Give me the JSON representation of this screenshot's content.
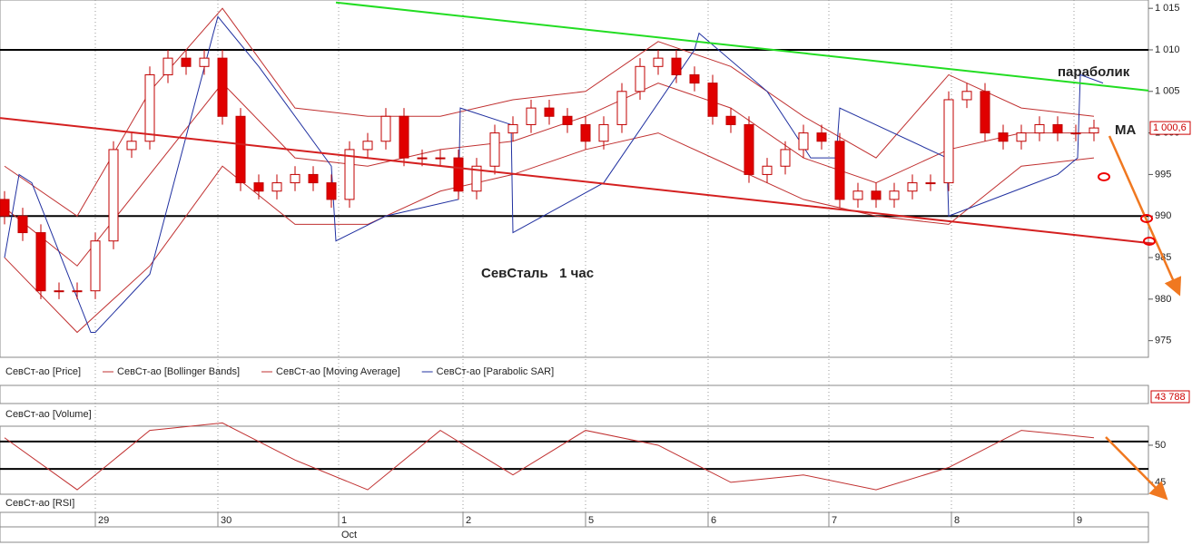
{
  "chart_data": {
    "type": "candlestick",
    "open": [
      992,
      990,
      988,
      981,
      981,
      981,
      987,
      998,
      999,
      1007,
      1009,
      1008,
      1009,
      1002,
      994,
      993,
      994,
      995,
      994,
      992,
      998,
      999,
      1002,
      997,
      997,
      997,
      993,
      996,
      1000,
      1001,
      1003,
      1002,
      1001,
      999,
      1001,
      1005,
      1008,
      1009,
      1007,
      1006,
      1002,
      1001,
      995,
      996,
      998,
      1000,
      999,
      992,
      993,
      992,
      993,
      994,
      994,
      1004,
      1005,
      1000,
      999,
      1000,
      1001,
      1000,
      1000
    ],
    "high": [
      993,
      991,
      989,
      982,
      982,
      988,
      999,
      1000,
      1008,
      1010,
      1010,
      1010,
      1010,
      1003,
      995,
      995,
      996,
      996,
      995,
      999,
      1000,
      1003,
      1003,
      998,
      998,
      998,
      997,
      1001,
      1002,
      1004,
      1004,
      1003,
      1002,
      1002,
      1006,
      1009,
      1010,
      1010,
      1008,
      1007,
      1003,
      1002,
      997,
      999,
      1001,
      1001,
      1000,
      994,
      994,
      994,
      995,
      995,
      1005,
      1006,
      1006,
      1001,
      1001,
      1002,
      1002,
      1001,
      1001.6
    ],
    "low": [
      989,
      987,
      980,
      980,
      980,
      980,
      986,
      997,
      998,
      1006,
      1007,
      1007,
      1001,
      993,
      992,
      992,
      993,
      993,
      991,
      991,
      997,
      998,
      996,
      996,
      996,
      992,
      992,
      995,
      999,
      1000,
      1001,
      1000,
      998,
      998,
      1000,
      1004,
      1007,
      1006,
      1005,
      1001,
      1000,
      994,
      994,
      995,
      997,
      998,
      991,
      991,
      991,
      991,
      992,
      993,
      993,
      1003,
      999,
      998,
      998,
      999,
      999,
      999,
      999
    ],
    "close": [
      990,
      988,
      981,
      981,
      981,
      987,
      998,
      999,
      1007,
      1009,
      1008,
      1009,
      1002,
      994,
      993,
      994,
      995,
      994,
      992,
      998,
      999,
      1002,
      997,
      997,
      997,
      993,
      996,
      1000,
      1001,
      1003,
      1002,
      1001,
      999,
      1001,
      1005,
      1008,
      1009,
      1007,
      1006,
      1002,
      1001,
      995,
      996,
      998,
      1000,
      999,
      992,
      993,
      992,
      993,
      994,
      994,
      1004,
      1005,
      1000,
      999,
      1000,
      1001,
      1000,
      1000,
      1000.6
    ],
    "candle_up_color": "#ffffff",
    "candle_down_color": "#e00000",
    "candle_border_color": "#c00000",
    "xlim": [
      -0.25,
      63
    ],
    "ylim": [
      973,
      1016
    ],
    "yticks": [
      {
        "value": 1015,
        "label": "1 015"
      },
      {
        "value": 1010,
        "label": "1 010"
      },
      {
        "value": 1005,
        "label": "1 005"
      },
      {
        "value": 1000,
        "label": "1 000"
      },
      995,
      990,
      985,
      980,
      975
    ],
    "xticks": [
      {
        "value": 5,
        "label": "29"
      },
      {
        "value": 11.75,
        "label": "30"
      },
      {
        "value": 18.4,
        "label": "1"
      },
      {
        "value": 25.25,
        "label": "2"
      },
      {
        "value": 32,
        "label": "5"
      },
      {
        "value": 38.75,
        "label": "6"
      },
      {
        "value": 45.4,
        "label": "7"
      },
      {
        "value": 52.15,
        "label": "8"
      },
      {
        "value": 58.9,
        "label": "9"
      }
    ],
    "month_label": "Oct",
    "last_price": {
      "value": 1000.6,
      "label": "1 000,6"
    },
    "series": [
      {
        "name": "СевСт-ао [Bollinger Bands]",
        "color": "#c03030",
        "x": [
          0,
          4,
          8,
          12,
          16,
          20,
          24,
          28,
          32,
          36,
          40,
          44,
          48,
          52,
          56,
          60
        ],
        "values": [
          996,
          990,
          1005,
          1015,
          1003,
          1002,
          1002,
          1004,
          1005,
          1011,
          1008,
          1002,
          997,
          1007,
          1003,
          1002
        ]
      },
      {
        "name": "СевСт-ао [Bollinger Bands]",
        "color": "#c03030",
        "x": [
          0,
          4,
          8,
          12,
          16,
          20,
          24,
          28,
          32,
          36,
          40,
          44,
          48,
          52,
          56,
          60
        ],
        "values": [
          985,
          976,
          984,
          996,
          989,
          989,
          993,
          995,
          998,
          1000,
          996,
          992,
          990,
          989,
          996,
          997
        ]
      },
      {
        "name": "СевСт-ао [Moving Average]",
        "color": "#c03030",
        "x": [
          0,
          4,
          8,
          12,
          16,
          20,
          24,
          28,
          32,
          36,
          40,
          44,
          48,
          52,
          56,
          60
        ],
        "values": [
          991,
          984,
          995,
          1006,
          997,
          996,
          998,
          999,
          1002,
          1006,
          1003,
          997,
          994,
          998,
          1000,
          1000
        ]
      },
      {
        "name": "СевСт-ао [Parabolic SAR]",
        "color": "#2030a0",
        "x": [
          0,
          0.8,
          1.5,
          4.75,
          5,
          8,
          11.5,
          11.75,
          14,
          18,
          18.25,
          21,
          25,
          25.1,
          27.9,
          28,
          33,
          38,
          38.25,
          42,
          44.4,
          44.5,
          45.8,
          46,
          51.9,
          52,
          58,
          59.1,
          59.25,
          60.5
        ],
        "values": [
          985,
          995,
          994,
          976,
          976,
          983,
          1012,
          1014,
          1008,
          996,
          987,
          990,
          992,
          1003,
          1001,
          988,
          994,
          1010,
          1012,
          1005,
          997,
          997,
          997,
          1003,
          997,
          990,
          995,
          997,
          1007,
          1006
        ]
      }
    ],
    "legend": [
      {
        "name": "СевСт-ао [Price]",
        "color": "#c03030"
      },
      {
        "name": "СевСт-ао [Bollinger Bands]",
        "color": "#c03030"
      },
      {
        "name": "СевСт-ао [Moving Average]",
        "color": "#c03030"
      },
      {
        "name": "СевСт-ао [Parabolic SAR]",
        "color": "#2030a0"
      }
    ],
    "hlines": [
      1010,
      990
    ],
    "trend_lines": [
      {
        "color": "#22dd22",
        "x": [
          18.25,
          63
        ],
        "values": [
          1015.7,
          1005.1
        ]
      },
      {
        "color": "#d42020",
        "x": [
          -0.25,
          63.25
        ],
        "values": [
          1001.8,
          986.7
        ]
      }
    ],
    "annotations": [
      "параболик",
      "МА",
      "СевСталь   1 час"
    ],
    "volume_title": "СевСт-ао [Volume]",
    "volume_last": "43 788",
    "rsi": {
      "title": "СевСт-ао [RSI]",
      "color": "#c03030",
      "ylim": [
        43.4,
        52.56
      ],
      "yticks": [
        50,
        45
      ],
      "levels": [
        50.5,
        46.8
      ],
      "x": [
        0,
        4,
        8,
        12,
        16,
        20,
        24,
        28,
        32,
        36,
        40,
        44,
        48,
        52,
        56,
        60
      ],
      "values": [
        51,
        44,
        52,
        53,
        48,
        44,
        52,
        46,
        52,
        50,
        45,
        46,
        44,
        47,
        52,
        51
      ]
    }
  }
}
